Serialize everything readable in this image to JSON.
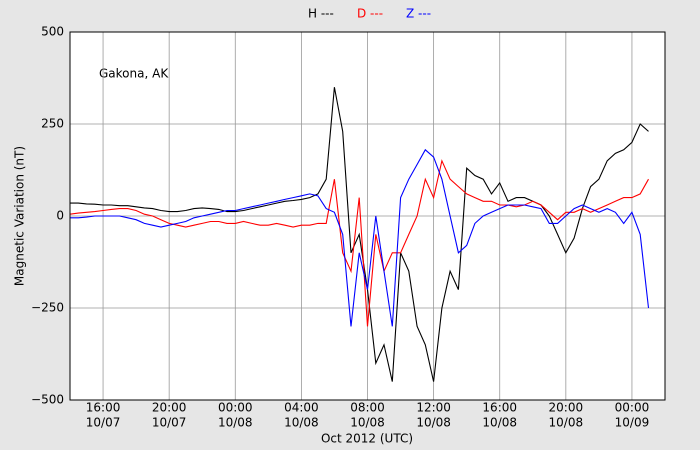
{
  "chart_data": {
    "type": "line",
    "annotation": "Gakona, AK",
    "x_label": "Oct 2012 (UTC)",
    "y_label": "Magnetic Variation (nT)",
    "xlim": [
      "2012-10-07T14:00",
      "2012-10-09T02:00"
    ],
    "xticks": [
      {
        "value": "2012-10-07T16:00",
        "label": [
          "16:00",
          "10/07"
        ]
      },
      {
        "value": "2012-10-07T20:00",
        "label": [
          "20:00",
          "10/07"
        ]
      },
      {
        "value": "2012-10-08T00:00",
        "label": [
          "00:00",
          "10/08"
        ]
      },
      {
        "value": "2012-10-08T04:00",
        "label": [
          "04:00",
          "10/08"
        ]
      },
      {
        "value": "2012-10-08T08:00",
        "label": [
          "08:00",
          "10/08"
        ]
      },
      {
        "value": "2012-10-08T12:00",
        "label": [
          "12:00",
          "10/08"
        ]
      },
      {
        "value": "2012-10-08T16:00",
        "label": [
          "16:00",
          "10/08"
        ]
      },
      {
        "value": "2012-10-08T20:00",
        "label": [
          "20:00",
          "10/08"
        ]
      },
      {
        "value": "2012-10-09T00:00",
        "label": [
          "00:00",
          "10/09"
        ]
      }
    ],
    "ylim": [
      -500,
      500
    ],
    "yticks": [
      {
        "value": -500,
        "label": "−500"
      },
      {
        "value": -250,
        "label": "−250"
      },
      0,
      250,
      500
    ],
    "grid": true,
    "x": [
      "2012-10-07T14:00",
      "2012-10-07T14:30",
      "2012-10-07T15:00",
      "2012-10-07T15:30",
      "2012-10-07T16:00",
      "2012-10-07T16:30",
      "2012-10-07T17:00",
      "2012-10-07T17:30",
      "2012-10-07T18:00",
      "2012-10-07T18:30",
      "2012-10-07T19:00",
      "2012-10-07T19:30",
      "2012-10-07T20:00",
      "2012-10-07T20:30",
      "2012-10-07T21:00",
      "2012-10-07T21:30",
      "2012-10-07T22:00",
      "2012-10-07T22:30",
      "2012-10-07T23:00",
      "2012-10-07T23:30",
      "2012-10-08T00:00",
      "2012-10-08T00:30",
      "2012-10-08T01:00",
      "2012-10-08T01:30",
      "2012-10-08T02:00",
      "2012-10-08T02:30",
      "2012-10-08T03:00",
      "2012-10-08T03:30",
      "2012-10-08T04:00",
      "2012-10-08T04:30",
      "2012-10-08T05:00",
      "2012-10-08T05:30",
      "2012-10-08T06:00",
      "2012-10-08T06:30",
      "2012-10-08T07:00",
      "2012-10-08T07:30",
      "2012-10-08T08:00",
      "2012-10-08T08:30",
      "2012-10-08T09:00",
      "2012-10-08T09:30",
      "2012-10-08T10:00",
      "2012-10-08T10:30",
      "2012-10-08T11:00",
      "2012-10-08T11:30",
      "2012-10-08T12:00",
      "2012-10-08T12:30",
      "2012-10-08T13:00",
      "2012-10-08T13:30",
      "2012-10-08T14:00",
      "2012-10-08T14:30",
      "2012-10-08T15:00",
      "2012-10-08T15:30",
      "2012-10-08T16:00",
      "2012-10-08T16:30",
      "2012-10-08T17:00",
      "2012-10-08T17:30",
      "2012-10-08T18:00",
      "2012-10-08T18:30",
      "2012-10-08T19:00",
      "2012-10-08T19:30",
      "2012-10-08T20:00",
      "2012-10-08T20:30",
      "2012-10-08T21:00",
      "2012-10-08T21:30",
      "2012-10-08T22:00",
      "2012-10-08T22:30",
      "2012-10-08T23:00",
      "2012-10-08T23:30",
      "2012-10-09T00:00",
      "2012-10-09T00:30",
      "2012-10-09T01:00"
    ],
    "series": [
      {
        "name": "H ---",
        "color": "#000000",
        "values": [
          35,
          35,
          33,
          32,
          30,
          30,
          28,
          28,
          25,
          22,
          20,
          15,
          12,
          12,
          15,
          20,
          22,
          20,
          18,
          12,
          12,
          15,
          20,
          25,
          30,
          35,
          40,
          42,
          45,
          50,
          60,
          100,
          350,
          230,
          -100,
          -50,
          -200,
          -400,
          -350,
          -450,
          -100,
          -150,
          -300,
          -350,
          -450,
          -250,
          -150,
          -200,
          130,
          110,
          100,
          60,
          90,
          40,
          50,
          50,
          40,
          30,
          0,
          -50,
          -100,
          -60,
          20,
          80,
          100,
          150,
          170,
          180,
          200,
          250,
          230
        ]
      },
      {
        "name": "D ---",
        "color": "#ff0000",
        "values": [
          5,
          8,
          10,
          12,
          15,
          18,
          20,
          20,
          15,
          5,
          0,
          -10,
          -20,
          -25,
          -30,
          -25,
          -20,
          -15,
          -15,
          -20,
          -20,
          -15,
          -20,
          -25,
          -25,
          -20,
          -25,
          -30,
          -25,
          -25,
          -20,
          -20,
          100,
          -100,
          -150,
          50,
          -300,
          -50,
          -150,
          -100,
          -100,
          -50,
          0,
          100,
          50,
          150,
          100,
          80,
          60,
          50,
          40,
          40,
          30,
          30,
          25,
          30,
          40,
          30,
          10,
          -10,
          10,
          10,
          20,
          10,
          20,
          30,
          40,
          50,
          50,
          60,
          100
        ]
      },
      {
        "name": "Z ---",
        "color": "#0000ff",
        "values": [
          -5,
          -5,
          -3,
          0,
          0,
          0,
          0,
          -5,
          -10,
          -20,
          -25,
          -30,
          -25,
          -20,
          -15,
          -5,
          0,
          5,
          10,
          15,
          15,
          20,
          25,
          30,
          35,
          40,
          45,
          50,
          55,
          60,
          55,
          20,
          10,
          -50,
          -300,
          -100,
          -200,
          0,
          -150,
          -300,
          50,
          100,
          140,
          180,
          160,
          100,
          0,
          -100,
          -80,
          -20,
          0,
          10,
          20,
          30,
          30,
          30,
          25,
          20,
          -20,
          -20,
          0,
          20,
          30,
          20,
          10,
          20,
          10,
          -20,
          10,
          -50,
          -250
        ]
      }
    ]
  }
}
